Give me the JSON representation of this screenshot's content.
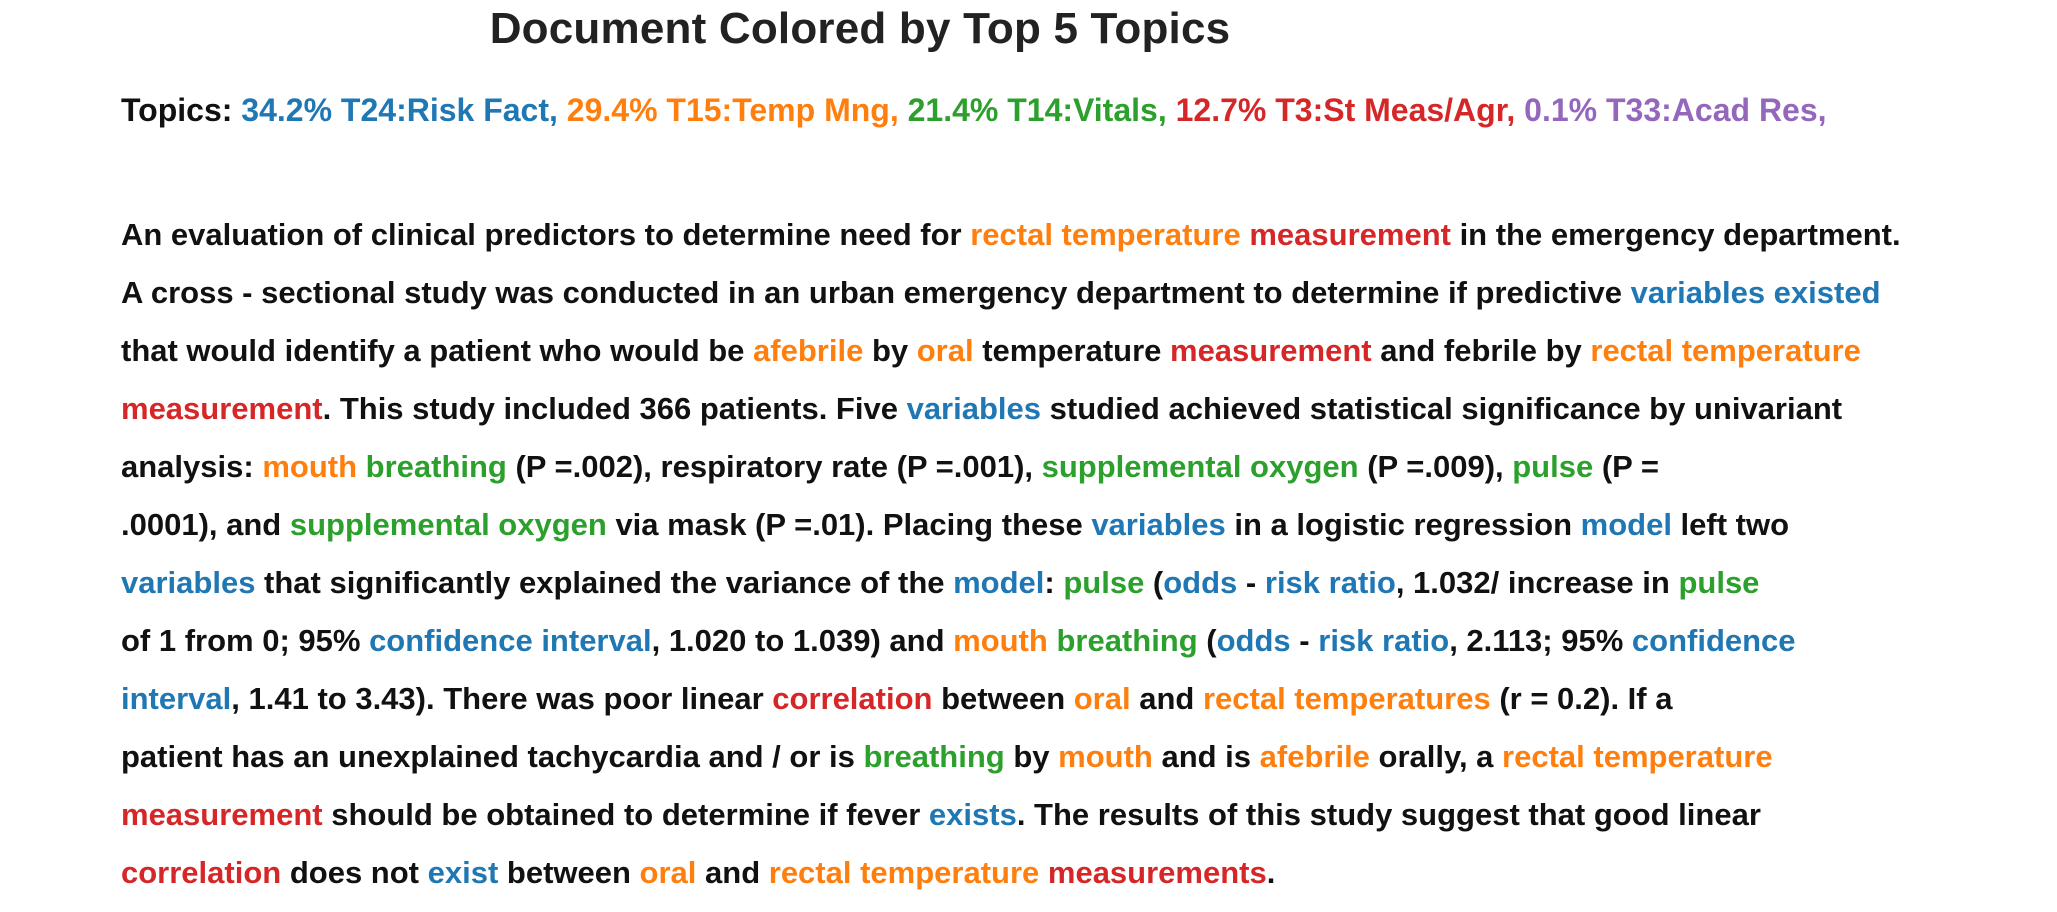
{
  "title": "Document Colored by Top 5 Topics",
  "colors": {
    "plain": "#111111",
    "t24": "#1f77b4",
    "t15": "#ff7f0e",
    "t14": "#2ca02c",
    "t3": "#d62728",
    "t33": "#9467bd"
  },
  "topics": {
    "label": "Topics:",
    "items": [
      {
        "text": "34.2% T24:Risk Fact,",
        "topic": "t24"
      },
      {
        "text": "29.4% T15:Temp Mng,",
        "topic": "t15"
      },
      {
        "text": "21.4% T14:Vitals,",
        "topic": "t14"
      },
      {
        "text": "12.7% T3:St Meas/Agr,",
        "topic": "t3"
      },
      {
        "text": "0.1% T33:Acad Res,",
        "topic": "t33"
      }
    ]
  },
  "lines": [
    [
      [
        "An evaluation of clinical predictors to determine need for ",
        null
      ],
      [
        "rectal temperature",
        "t15"
      ],
      [
        " ",
        null
      ],
      [
        "measurement",
        "t3"
      ],
      [
        " in the emergency department.",
        null
      ]
    ],
    [
      [
        "A cross - sectional study was conducted in an urban emergency department to determine if predictive ",
        null
      ],
      [
        "variables existed",
        "t24"
      ]
    ],
    [
      [
        "that would identify a patient who would be ",
        null
      ],
      [
        "afebrile",
        "t15"
      ],
      [
        " by ",
        null
      ],
      [
        "oral",
        "t15"
      ],
      [
        " temperature ",
        null
      ],
      [
        "measurement",
        "t3"
      ],
      [
        " and febrile by ",
        null
      ],
      [
        "rectal temperature",
        "t15"
      ]
    ],
    [
      [
        "measurement",
        "t3"
      ],
      [
        ". This study included 366 patients. Five ",
        null
      ],
      [
        "variables",
        "t24"
      ],
      [
        " studied achieved statistical significance by univariant",
        null
      ]
    ],
    [
      [
        "analysis: ",
        null
      ],
      [
        "mouth",
        "t15"
      ],
      [
        " ",
        null
      ],
      [
        "breathing",
        "t14"
      ],
      [
        " (P =.002), respiratory rate (P =.001), ",
        null
      ],
      [
        "supplemental oxygen",
        "t14"
      ],
      [
        " (P =.009), ",
        null
      ],
      [
        "pulse",
        "t14"
      ],
      [
        " (P =",
        null
      ]
    ],
    [
      [
        ".0001), and ",
        null
      ],
      [
        "supplemental oxygen",
        "t14"
      ],
      [
        " via mask (P =.01). Placing these ",
        null
      ],
      [
        "variables",
        "t24"
      ],
      [
        " in a logistic regression ",
        null
      ],
      [
        "model",
        "t24"
      ],
      [
        " left two",
        null
      ]
    ],
    [
      [
        "variables",
        "t24"
      ],
      [
        " that significantly explained the variance of the ",
        null
      ],
      [
        "model",
        "t24"
      ],
      [
        ": ",
        null
      ],
      [
        "pulse",
        "t14"
      ],
      [
        " (",
        null
      ],
      [
        "odds",
        "t24"
      ],
      [
        " - ",
        null
      ],
      [
        "risk ratio",
        "t24"
      ],
      [
        ", 1.032/ increase in ",
        null
      ],
      [
        "pulse",
        "t14"
      ]
    ],
    [
      [
        "of 1 from 0; 95% ",
        null
      ],
      [
        "confidence interval",
        "t24"
      ],
      [
        ", 1.020 to 1.039) and ",
        null
      ],
      [
        "mouth",
        "t15"
      ],
      [
        " ",
        null
      ],
      [
        "breathing",
        "t14"
      ],
      [
        " (",
        null
      ],
      [
        "odds",
        "t24"
      ],
      [
        " - ",
        null
      ],
      [
        "risk ratio",
        "t24"
      ],
      [
        ", 2.113; 95% ",
        null
      ],
      [
        "confidence",
        "t24"
      ]
    ],
    [
      [
        "interval",
        "t24"
      ],
      [
        ", 1.41 to 3.43). There was poor linear ",
        null
      ],
      [
        "correlation",
        "t3"
      ],
      [
        " between ",
        null
      ],
      [
        "oral",
        "t15"
      ],
      [
        " and ",
        null
      ],
      [
        "rectal temperatures",
        "t15"
      ],
      [
        " (r = 0.2). If a",
        null
      ]
    ],
    [
      [
        "patient has an unexplained tachycardia and / or is ",
        null
      ],
      [
        "breathing",
        "t14"
      ],
      [
        " by ",
        null
      ],
      [
        "mouth",
        "t15"
      ],
      [
        " and is ",
        null
      ],
      [
        "afebrile",
        "t15"
      ],
      [
        " orally, a ",
        null
      ],
      [
        "rectal temperature",
        "t15"
      ]
    ],
    [
      [
        "measurement",
        "t3"
      ],
      [
        " should be obtained to determine if fever ",
        null
      ],
      [
        "exists",
        "t24"
      ],
      [
        ". The results of this study suggest that good linear",
        null
      ]
    ],
    [
      [
        "correlation",
        "t3"
      ],
      [
        " does not ",
        null
      ],
      [
        "exist",
        "t24"
      ],
      [
        " between ",
        null
      ],
      [
        "oral",
        "t15"
      ],
      [
        " and ",
        null
      ],
      [
        "rectal temperature",
        "t15"
      ],
      [
        " ",
        null
      ],
      [
        "measurements",
        "t3"
      ],
      [
        ".",
        null
      ]
    ]
  ]
}
